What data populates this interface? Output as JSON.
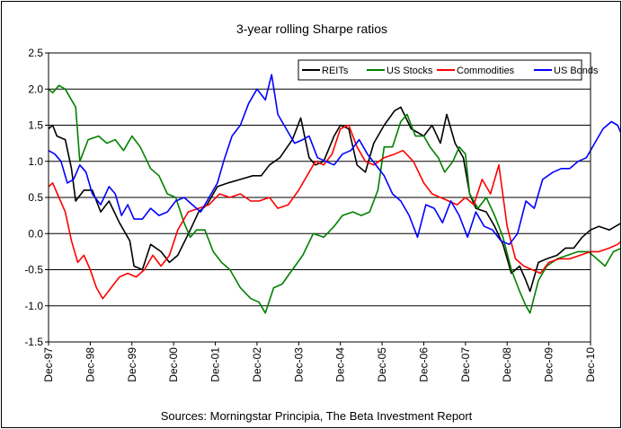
{
  "chart_data": {
    "type": "line",
    "title": "3-year rolling Sharpe ratios",
    "source": "Sources: Morningstar Principia, The Beta Investment Report",
    "xlabel": "",
    "ylabel": "",
    "ylim": [
      -1.5,
      2.5
    ],
    "yticks": [
      "2.5",
      "2.0",
      "1.5",
      "1.0",
      "0.5",
      "0.0",
      "-0.5",
      "-1.0",
      "-1.5"
    ],
    "xticks": [
      "Dec-97",
      "Dec-98",
      "Dec-99",
      "Dec-00",
      "Dec-01",
      "Dec-02",
      "Dec-03",
      "Dec-04",
      "Dec-05",
      "Dec-06",
      "Dec-07",
      "Dec-08",
      "Dec-09",
      "Dec-10"
    ],
    "x_units": "years since Dec-97",
    "grid": "horizontal",
    "legend_position": "top-right",
    "series": [
      {
        "name": "REITs",
        "color": "#000000",
        "points": [
          [
            0,
            1.45
          ],
          [
            0.1,
            1.5
          ],
          [
            0.2,
            1.35
          ],
          [
            0.4,
            1.3
          ],
          [
            0.55,
            0.9
          ],
          [
            0.65,
            0.45
          ],
          [
            0.85,
            0.6
          ],
          [
            1.05,
            0.6
          ],
          [
            1.25,
            0.3
          ],
          [
            1.45,
            0.45
          ],
          [
            1.7,
            0.15
          ],
          [
            1.95,
            -0.1
          ],
          [
            2.05,
            -0.45
          ],
          [
            2.25,
            -0.5
          ],
          [
            2.45,
            -0.15
          ],
          [
            2.7,
            -0.25
          ],
          [
            2.9,
            -0.4
          ],
          [
            3.1,
            -0.3
          ],
          [
            3.4,
            0.05
          ],
          [
            3.6,
            0.3
          ],
          [
            3.8,
            0.4
          ],
          [
            4.05,
            0.65
          ],
          [
            4.3,
            0.7
          ],
          [
            4.6,
            0.75
          ],
          [
            4.9,
            0.8
          ],
          [
            5.1,
            0.8
          ],
          [
            5.3,
            0.95
          ],
          [
            5.55,
            1.05
          ],
          [
            5.85,
            1.3
          ],
          [
            6.05,
            1.6
          ],
          [
            6.25,
            1.05
          ],
          [
            6.4,
            0.95
          ],
          [
            6.6,
            1.0
          ],
          [
            6.85,
            1.35
          ],
          [
            7.0,
            1.5
          ],
          [
            7.2,
            1.45
          ],
          [
            7.4,
            0.95
          ],
          [
            7.6,
            0.85
          ],
          [
            7.8,
            1.25
          ],
          [
            8.05,
            1.5
          ],
          [
            8.3,
            1.7
          ],
          [
            8.45,
            1.75
          ],
          [
            8.7,
            1.45
          ],
          [
            9.0,
            1.35
          ],
          [
            9.2,
            1.5
          ],
          [
            9.4,
            1.25
          ],
          [
            9.55,
            1.65
          ],
          [
            9.75,
            1.25
          ],
          [
            9.95,
            1.05
          ],
          [
            10.1,
            0.55
          ],
          [
            10.25,
            0.35
          ],
          [
            10.5,
            0.3
          ],
          [
            10.7,
            0.1
          ],
          [
            10.9,
            -0.15
          ],
          [
            11.1,
            -0.55
          ],
          [
            11.3,
            -0.45
          ],
          [
            11.45,
            -0.65
          ],
          [
            11.55,
            -0.8
          ],
          [
            11.75,
            -0.4
          ],
          [
            11.95,
            -0.35
          ],
          [
            12.2,
            -0.3
          ],
          [
            12.4,
            -0.2
          ],
          [
            12.6,
            -0.2
          ],
          [
            12.8,
            -0.05
          ],
          [
            13.0,
            0.05
          ],
          [
            13.2,
            0.1
          ],
          [
            13.45,
            0.05
          ],
          [
            13.6,
            0.1
          ],
          [
            13.75,
            0.15
          ],
          [
            13.85,
            0.2
          ]
        ]
      },
      {
        "name": "US Stocks",
        "color": "#008000",
        "points": [
          [
            0,
            2.0
          ],
          [
            0.1,
            1.95
          ],
          [
            0.25,
            2.05
          ],
          [
            0.4,
            2.0
          ],
          [
            0.55,
            1.85
          ],
          [
            0.65,
            1.75
          ],
          [
            0.75,
            1.0
          ],
          [
            0.95,
            1.3
          ],
          [
            1.2,
            1.35
          ],
          [
            1.4,
            1.25
          ],
          [
            1.6,
            1.3
          ],
          [
            1.8,
            1.15
          ],
          [
            2.0,
            1.35
          ],
          [
            2.2,
            1.2
          ],
          [
            2.45,
            0.9
          ],
          [
            2.65,
            0.8
          ],
          [
            2.85,
            0.55
          ],
          [
            3.05,
            0.5
          ],
          [
            3.25,
            0.15
          ],
          [
            3.4,
            -0.05
          ],
          [
            3.55,
            0.05
          ],
          [
            3.75,
            0.05
          ],
          [
            3.95,
            -0.25
          ],
          [
            4.15,
            -0.4
          ],
          [
            4.35,
            -0.5
          ],
          [
            4.6,
            -0.75
          ],
          [
            4.85,
            -0.9
          ],
          [
            5.05,
            -0.95
          ],
          [
            5.2,
            -1.1
          ],
          [
            5.4,
            -0.75
          ],
          [
            5.6,
            -0.7
          ],
          [
            5.85,
            -0.5
          ],
          [
            6.1,
            -0.3
          ],
          [
            6.35,
            0.0
          ],
          [
            6.6,
            -0.05
          ],
          [
            6.85,
            0.1
          ],
          [
            7.05,
            0.25
          ],
          [
            7.3,
            0.3
          ],
          [
            7.5,
            0.25
          ],
          [
            7.7,
            0.3
          ],
          [
            7.9,
            0.6
          ],
          [
            8.05,
            1.2
          ],
          [
            8.25,
            1.2
          ],
          [
            8.45,
            1.55
          ],
          [
            8.6,
            1.65
          ],
          [
            8.8,
            1.35
          ],
          [
            9.0,
            1.35
          ],
          [
            9.15,
            1.2
          ],
          [
            9.35,
            1.05
          ],
          [
            9.5,
            0.85
          ],
          [
            9.7,
            1.0
          ],
          [
            9.85,
            1.2
          ],
          [
            10.0,
            1.1
          ],
          [
            10.1,
            0.55
          ],
          [
            10.3,
            0.35
          ],
          [
            10.5,
            0.5
          ],
          [
            10.7,
            0.25
          ],
          [
            10.9,
            -0.05
          ],
          [
            11.1,
            -0.5
          ],
          [
            11.3,
            -0.8
          ],
          [
            11.45,
            -1.0
          ],
          [
            11.55,
            -1.1
          ],
          [
            11.75,
            -0.65
          ],
          [
            11.95,
            -0.45
          ],
          [
            12.2,
            -0.35
          ],
          [
            12.45,
            -0.3
          ],
          [
            12.7,
            -0.25
          ],
          [
            12.95,
            -0.25
          ],
          [
            13.15,
            -0.35
          ],
          [
            13.35,
            -0.45
          ],
          [
            13.55,
            -0.25
          ],
          [
            13.75,
            -0.2
          ],
          [
            13.85,
            -0.05
          ]
        ]
      },
      {
        "name": "Commodities",
        "color": "#ff0000",
        "points": [
          [
            0,
            0.65
          ],
          [
            0.1,
            0.7
          ],
          [
            0.25,
            0.5
          ],
          [
            0.4,
            0.3
          ],
          [
            0.55,
            -0.1
          ],
          [
            0.7,
            -0.4
          ],
          [
            0.85,
            -0.3
          ],
          [
            1.0,
            -0.5
          ],
          [
            1.15,
            -0.75
          ],
          [
            1.3,
            -0.9
          ],
          [
            1.5,
            -0.75
          ],
          [
            1.7,
            -0.6
          ],
          [
            1.9,
            -0.55
          ],
          [
            2.1,
            -0.6
          ],
          [
            2.3,
            -0.5
          ],
          [
            2.5,
            -0.3
          ],
          [
            2.7,
            -0.45
          ],
          [
            2.9,
            -0.3
          ],
          [
            3.1,
            0.05
          ],
          [
            3.35,
            0.3
          ],
          [
            3.6,
            0.35
          ],
          [
            3.85,
            0.4
          ],
          [
            4.1,
            0.55
          ],
          [
            4.35,
            0.5
          ],
          [
            4.6,
            0.55
          ],
          [
            4.85,
            0.45
          ],
          [
            5.05,
            0.45
          ],
          [
            5.3,
            0.5
          ],
          [
            5.5,
            0.35
          ],
          [
            5.75,
            0.4
          ],
          [
            6.0,
            0.6
          ],
          [
            6.2,
            0.8
          ],
          [
            6.4,
            1.0
          ],
          [
            6.6,
            0.95
          ],
          [
            6.8,
            1.1
          ],
          [
            7.0,
            1.45
          ],
          [
            7.2,
            1.5
          ],
          [
            7.4,
            1.2
          ],
          [
            7.6,
            1.0
          ],
          [
            7.8,
            0.95
          ],
          [
            8.05,
            1.05
          ],
          [
            8.3,
            1.1
          ],
          [
            8.5,
            1.15
          ],
          [
            8.75,
            1.0
          ],
          [
            9.0,
            0.7
          ],
          [
            9.2,
            0.55
          ],
          [
            9.4,
            0.5
          ],
          [
            9.6,
            0.45
          ],
          [
            9.8,
            0.4
          ],
          [
            10.0,
            0.5
          ],
          [
            10.2,
            0.4
          ],
          [
            10.4,
            0.75
          ],
          [
            10.6,
            0.55
          ],
          [
            10.8,
            0.95
          ],
          [
            11.0,
            0.1
          ],
          [
            11.2,
            -0.35
          ],
          [
            11.4,
            -0.45
          ],
          [
            11.6,
            -0.5
          ],
          [
            11.8,
            -0.55
          ],
          [
            12.0,
            -0.4
          ],
          [
            12.25,
            -0.35
          ],
          [
            12.5,
            -0.35
          ],
          [
            12.75,
            -0.3
          ],
          [
            13.0,
            -0.25
          ],
          [
            13.2,
            -0.25
          ],
          [
            13.45,
            -0.2
          ],
          [
            13.65,
            -0.15
          ],
          [
            13.85,
            -0.05
          ]
        ]
      },
      {
        "name": "US Bonds",
        "color": "#0000ff",
        "points": [
          [
            0,
            1.15
          ],
          [
            0.15,
            1.1
          ],
          [
            0.3,
            1.0
          ],
          [
            0.45,
            0.7
          ],
          [
            0.6,
            0.75
          ],
          [
            0.75,
            0.95
          ],
          [
            0.9,
            0.85
          ],
          [
            1.05,
            0.55
          ],
          [
            1.25,
            0.4
          ],
          [
            1.45,
            0.65
          ],
          [
            1.6,
            0.55
          ],
          [
            1.75,
            0.25
          ],
          [
            1.9,
            0.4
          ],
          [
            2.05,
            0.2
          ],
          [
            2.25,
            0.2
          ],
          [
            2.45,
            0.35
          ],
          [
            2.65,
            0.25
          ],
          [
            2.85,
            0.3
          ],
          [
            3.05,
            0.45
          ],
          [
            3.25,
            0.5
          ],
          [
            3.45,
            0.4
          ],
          [
            3.65,
            0.3
          ],
          [
            3.85,
            0.5
          ],
          [
            4.05,
            0.7
          ],
          [
            4.2,
            1.0
          ],
          [
            4.4,
            1.35
          ],
          [
            4.6,
            1.5
          ],
          [
            4.8,
            1.8
          ],
          [
            5.0,
            2.0
          ],
          [
            5.2,
            1.85
          ],
          [
            5.35,
            2.2
          ],
          [
            5.5,
            1.65
          ],
          [
            5.7,
            1.45
          ],
          [
            5.9,
            1.25
          ],
          [
            6.1,
            1.3
          ],
          [
            6.25,
            1.35
          ],
          [
            6.45,
            1.05
          ],
          [
            6.65,
            1.0
          ],
          [
            6.85,
            0.95
          ],
          [
            7.05,
            1.1
          ],
          [
            7.25,
            1.15
          ],
          [
            7.45,
            1.3
          ],
          [
            7.65,
            1.1
          ],
          [
            7.85,
            0.95
          ],
          [
            8.05,
            0.8
          ],
          [
            8.25,
            0.55
          ],
          [
            8.45,
            0.45
          ],
          [
            8.65,
            0.25
          ],
          [
            8.85,
            -0.05
          ],
          [
            9.05,
            0.4
          ],
          [
            9.25,
            0.35
          ],
          [
            9.45,
            0.15
          ],
          [
            9.65,
            0.45
          ],
          [
            9.85,
            0.25
          ],
          [
            10.05,
            -0.05
          ],
          [
            10.25,
            0.3
          ],
          [
            10.45,
            0.1
          ],
          [
            10.65,
            0.05
          ],
          [
            10.85,
            -0.1
          ],
          [
            11.05,
            -0.15
          ],
          [
            11.25,
            0.0
          ],
          [
            11.45,
            0.45
          ],
          [
            11.65,
            0.35
          ],
          [
            11.85,
            0.75
          ],
          [
            12.1,
            0.85
          ],
          [
            12.3,
            0.9
          ],
          [
            12.5,
            0.9
          ],
          [
            12.7,
            1.0
          ],
          [
            12.9,
            1.05
          ],
          [
            13.1,
            1.25
          ],
          [
            13.3,
            1.45
          ],
          [
            13.5,
            1.55
          ],
          [
            13.65,
            1.5
          ],
          [
            13.8,
            1.3
          ],
          [
            13.85,
            1.2
          ]
        ]
      }
    ]
  }
}
